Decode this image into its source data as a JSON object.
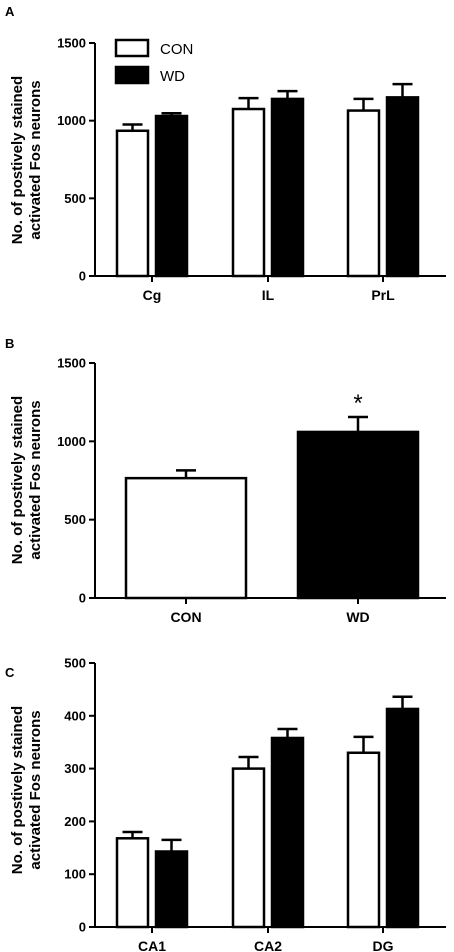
{
  "figure": {
    "panels": [
      "A",
      "B",
      "C"
    ]
  },
  "colors": {
    "con_fill": "#ffffff",
    "wd_fill": "#000000",
    "stroke": "#000000"
  },
  "chart_data": [
    {
      "type": "bar",
      "panel_label": "A",
      "ylabel_line1": "No. of postively stained",
      "ylabel_line2": "activated Fos neurons",
      "categories": [
        "Cg",
        "IL",
        "PrL"
      ],
      "series": [
        {
          "name": "CON",
          "values": [
            935,
            1075,
            1065
          ],
          "errors": [
            40,
            70,
            75
          ]
        },
        {
          "name": "WD",
          "values": [
            1030,
            1140,
            1150
          ],
          "errors": [
            18,
            50,
            85
          ]
        }
      ],
      "yticks": [
        0,
        500,
        1000,
        1500
      ],
      "ylim": [
        0,
        1500
      ],
      "legend": {
        "position": "top-left",
        "entries": [
          "CON",
          "WD"
        ]
      }
    },
    {
      "type": "bar",
      "panel_label": "B",
      "ylabel_line1": "No. of postively stained",
      "ylabel_line2": "activated Fos neurons",
      "categories": [
        "CON",
        "WD"
      ],
      "values": [
        765,
        1060
      ],
      "errors": [
        50,
        95
      ],
      "fills": [
        "white",
        "black"
      ],
      "significance": [
        null,
        "*"
      ],
      "yticks": [
        0,
        500,
        1000,
        1500
      ],
      "ylim": [
        0,
        1500
      ]
    },
    {
      "type": "bar",
      "panel_label": "C",
      "ylabel_line1": "No. of postively stained",
      "ylabel_line2": "activated Fos neurons",
      "categories": [
        "CA1",
        "CA2",
        "DG"
      ],
      "series": [
        {
          "name": "CON",
          "values": [
            168,
            300,
            330
          ],
          "errors": [
            12,
            22,
            30
          ]
        },
        {
          "name": "WD",
          "values": [
            143,
            358,
            413
          ],
          "errors": [
            22,
            17,
            23
          ]
        }
      ],
      "yticks": [
        0,
        100,
        200,
        300,
        400,
        500
      ],
      "ylim": [
        0,
        500
      ]
    }
  ]
}
